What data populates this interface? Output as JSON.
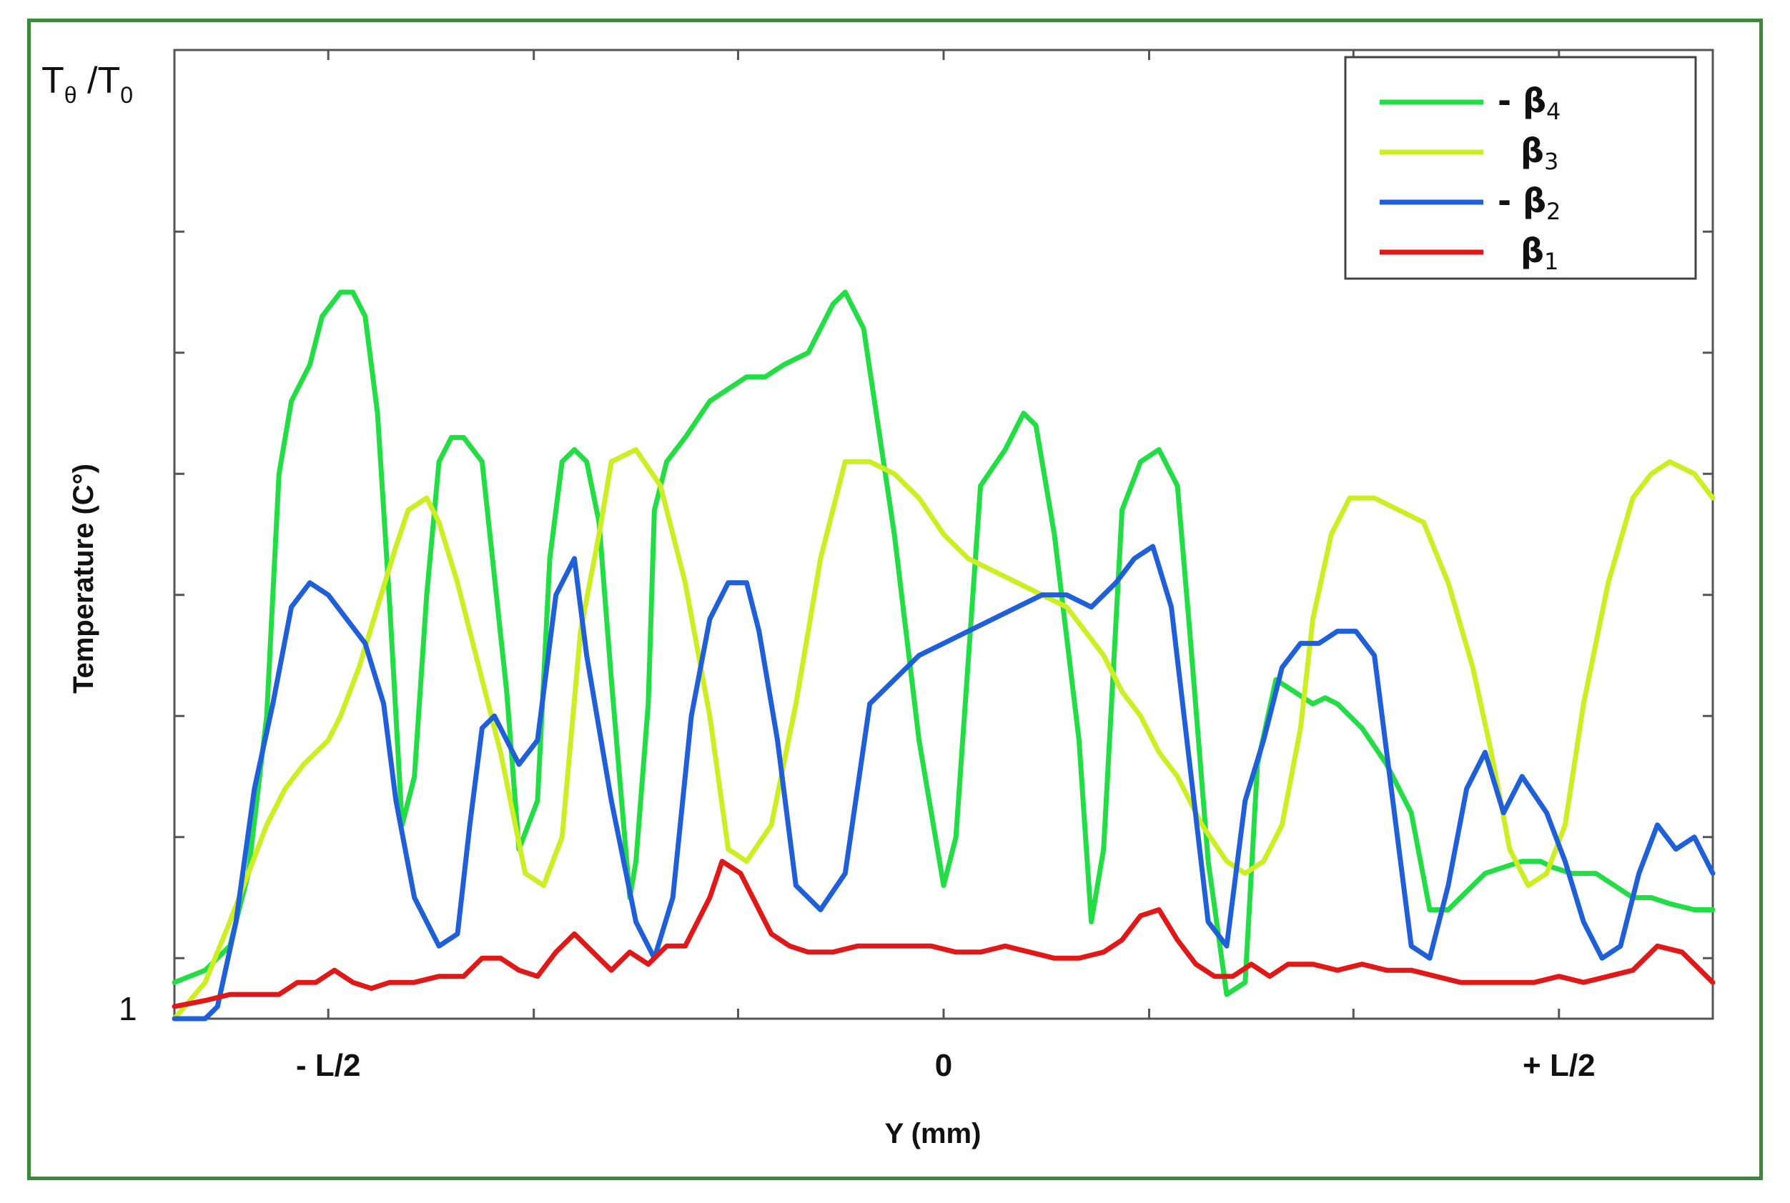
{
  "chart_data": {
    "type": "line",
    "title": "",
    "xlabel": "Y (mm)",
    "ylabel": "Temperature (C°)",
    "corner_label": {
      "main": "T",
      "sub": "θ",
      "sep": " /T",
      "sub2": "0"
    },
    "x_ticks": [
      {
        "value": -0.5,
        "label": "- L/2"
      },
      {
        "value": 0,
        "label": "0"
      },
      {
        "value": 0.5,
        "label": "+ L/2"
      }
    ],
    "x_minor_ticks": [
      -0.5,
      -0.333,
      -0.167,
      0,
      0.167,
      0.333,
      0.5
    ],
    "y_ticks": [
      {
        "value": 1,
        "label": "1"
      }
    ],
    "y_minor_ticks": [
      1.5,
      2.5,
      3.5,
      4.5,
      5.5,
      6.5,
      7.5
    ],
    "xlim": [
      -0.625,
      0.625
    ],
    "ylim": [
      1,
      9
    ],
    "grid": false,
    "legend_position": "top-right",
    "series": [
      {
        "name": "β4",
        "prefix": "- ",
        "base": "β",
        "sub": "4",
        "color": "#22dd44",
        "x": [
          -0.625,
          -0.6,
          -0.58,
          -0.565,
          -0.55,
          -0.54,
          -0.53,
          -0.515,
          -0.505,
          -0.49,
          -0.48,
          -0.47,
          -0.46,
          -0.45,
          -0.44,
          -0.43,
          -0.42,
          -0.41,
          -0.4,
          -0.39,
          -0.375,
          -0.355,
          -0.345,
          -0.33,
          -0.32,
          -0.31,
          -0.3,
          -0.29,
          -0.28,
          -0.27,
          -0.255,
          -0.25,
          -0.24,
          -0.235,
          -0.225,
          -0.21,
          -0.19,
          -0.175,
          -0.16,
          -0.145,
          -0.13,
          -0.11,
          -0.1,
          -0.09,
          -0.08,
          -0.065,
          -0.04,
          -0.02,
          0.0,
          0.01,
          0.03,
          0.05,
          0.065,
          0.075,
          0.09,
          0.11,
          0.12,
          0.13,
          0.145,
          0.16,
          0.175,
          0.19,
          0.2,
          0.215,
          0.23,
          0.245,
          0.255,
          0.27,
          0.285,
          0.3,
          0.31,
          0.32,
          0.34,
          0.36,
          0.38,
          0.395,
          0.41,
          0.42,
          0.43,
          0.44,
          0.455,
          0.47,
          0.485,
          0.495,
          0.51,
          0.53,
          0.545,
          0.56,
          0.575,
          0.59,
          0.61,
          0.625
        ],
        "y": [
          1.3,
          1.4,
          1.6,
          2.2,
          3.5,
          5.5,
          6.1,
          6.4,
          6.8,
          7.0,
          7.0,
          6.8,
          6.0,
          4.4,
          2.6,
          3.0,
          4.5,
          5.6,
          5.8,
          5.8,
          5.6,
          3.7,
          2.4,
          2.8,
          4.8,
          5.6,
          5.7,
          5.6,
          5.1,
          3.8,
          2.0,
          2.3,
          3.6,
          5.2,
          5.6,
          5.8,
          6.1,
          6.2,
          6.3,
          6.3,
          6.4,
          6.5,
          6.7,
          6.9,
          7.0,
          6.7,
          5.0,
          3.3,
          2.1,
          2.5,
          5.4,
          5.7,
          6.0,
          5.9,
          5.0,
          3.3,
          1.8,
          2.4,
          5.2,
          5.6,
          5.7,
          5.4,
          4.2,
          2.3,
          1.2,
          1.3,
          3.1,
          3.8,
          3.7,
          3.6,
          3.65,
          3.6,
          3.4,
          3.1,
          2.7,
          1.9,
          1.9,
          2.0,
          2.1,
          2.2,
          2.25,
          2.3,
          2.3,
          2.25,
          2.2,
          2.2,
          2.1,
          2.0,
          2.0,
          1.95,
          1.9,
          1.9
        ]
      },
      {
        "name": "β3",
        "prefix": "",
        "base": "β",
        "sub": "3",
        "color": "#ccee22",
        "x": [
          -0.625,
          -0.6,
          -0.58,
          -0.565,
          -0.55,
          -0.535,
          -0.52,
          -0.5,
          -0.49,
          -0.475,
          -0.46,
          -0.445,
          -0.435,
          -0.42,
          -0.41,
          -0.395,
          -0.38,
          -0.36,
          -0.34,
          -0.325,
          -0.31,
          -0.295,
          -0.28,
          -0.27,
          -0.25,
          -0.23,
          -0.21,
          -0.19,
          -0.175,
          -0.16,
          -0.14,
          -0.12,
          -0.1,
          -0.08,
          -0.06,
          -0.04,
          -0.02,
          0.0,
          0.02,
          0.04,
          0.06,
          0.08,
          0.1,
          0.115,
          0.13,
          0.145,
          0.16,
          0.175,
          0.19,
          0.21,
          0.23,
          0.245,
          0.26,
          0.275,
          0.29,
          0.3,
          0.315,
          0.33,
          0.35,
          0.37,
          0.39,
          0.41,
          0.43,
          0.445,
          0.46,
          0.475,
          0.49,
          0.505,
          0.52,
          0.54,
          0.56,
          0.575,
          0.59,
          0.61,
          0.625
        ],
        "y": [
          1.0,
          1.3,
          1.8,
          2.2,
          2.6,
          2.9,
          3.1,
          3.3,
          3.5,
          3.9,
          4.4,
          4.9,
          5.2,
          5.3,
          5.1,
          4.6,
          4.0,
          3.2,
          2.2,
          2.1,
          2.5,
          4.2,
          5.0,
          5.6,
          5.7,
          5.4,
          4.6,
          3.5,
          2.4,
          2.3,
          2.6,
          3.6,
          4.8,
          5.6,
          5.6,
          5.5,
          5.3,
          5.0,
          4.8,
          4.7,
          4.6,
          4.5,
          4.4,
          4.2,
          4.0,
          3.7,
          3.5,
          3.2,
          3.0,
          2.6,
          2.3,
          2.2,
          2.3,
          2.6,
          3.4,
          4.3,
          5.0,
          5.3,
          5.3,
          5.2,
          5.1,
          4.6,
          3.9,
          3.2,
          2.4,
          2.1,
          2.2,
          2.6,
          3.6,
          4.6,
          5.3,
          5.5,
          5.6,
          5.5,
          5.3
        ]
      },
      {
        "name": "β2",
        "prefix": "- ",
        "base": "β",
        "sub": "2",
        "color": "#1f5fd8",
        "x": [
          -0.625,
          -0.6,
          -0.59,
          -0.575,
          -0.56,
          -0.545,
          -0.53,
          -0.515,
          -0.5,
          -0.485,
          -0.47,
          -0.455,
          -0.445,
          -0.43,
          -0.41,
          -0.395,
          -0.385,
          -0.375,
          -0.365,
          -0.345,
          -0.33,
          -0.315,
          -0.3,
          -0.29,
          -0.27,
          -0.25,
          -0.235,
          -0.22,
          -0.205,
          -0.19,
          -0.175,
          -0.16,
          -0.15,
          -0.135,
          -0.12,
          -0.1,
          -0.08,
          -0.06,
          -0.04,
          -0.02,
          0.0,
          0.02,
          0.04,
          0.06,
          0.08,
          0.1,
          0.12,
          0.14,
          0.155,
          0.17,
          0.185,
          0.2,
          0.215,
          0.23,
          0.245,
          0.26,
          0.275,
          0.29,
          0.305,
          0.32,
          0.335,
          0.35,
          0.365,
          0.38,
          0.395,
          0.41,
          0.425,
          0.44,
          0.455,
          0.47,
          0.49,
          0.505,
          0.52,
          0.535,
          0.55,
          0.565,
          0.58,
          0.595,
          0.61,
          0.625
        ],
        "y": [
          1.0,
          1.0,
          1.1,
          1.8,
          2.9,
          3.6,
          4.4,
          4.6,
          4.5,
          4.3,
          4.1,
          3.6,
          2.8,
          2.0,
          1.6,
          1.7,
          2.6,
          3.4,
          3.5,
          3.1,
          3.3,
          4.5,
          4.8,
          4.0,
          2.8,
          1.8,
          1.5,
          2.0,
          3.5,
          4.3,
          4.6,
          4.6,
          4.2,
          3.3,
          2.1,
          1.9,
          2.2,
          3.6,
          3.8,
          4.0,
          4.1,
          4.2,
          4.3,
          4.4,
          4.5,
          4.5,
          4.4,
          4.6,
          4.8,
          4.9,
          4.4,
          3.1,
          1.8,
          1.6,
          2.8,
          3.3,
          3.9,
          4.1,
          4.1,
          4.2,
          4.2,
          4.0,
          2.8,
          1.6,
          1.5,
          2.1,
          2.9,
          3.2,
          2.7,
          3.0,
          2.7,
          2.3,
          1.8,
          1.5,
          1.6,
          2.2,
          2.6,
          2.4,
          2.5,
          2.2
        ]
      },
      {
        "name": "β1",
        "prefix": "",
        "base": "β",
        "sub": "1",
        "color": "#e01818",
        "x": [
          -0.625,
          -0.6,
          -0.58,
          -0.56,
          -0.54,
          -0.525,
          -0.51,
          -0.495,
          -0.48,
          -0.465,
          -0.45,
          -0.43,
          -0.41,
          -0.39,
          -0.375,
          -0.36,
          -0.345,
          -0.33,
          -0.315,
          -0.3,
          -0.285,
          -0.27,
          -0.255,
          -0.24,
          -0.225,
          -0.21,
          -0.2,
          -0.19,
          -0.18,
          -0.165,
          -0.15,
          -0.14,
          -0.125,
          -0.11,
          -0.09,
          -0.07,
          -0.05,
          -0.03,
          -0.01,
          0.01,
          0.03,
          0.05,
          0.07,
          0.09,
          0.11,
          0.13,
          0.145,
          0.16,
          0.175,
          0.19,
          0.205,
          0.22,
          0.235,
          0.25,
          0.265,
          0.28,
          0.3,
          0.32,
          0.34,
          0.36,
          0.38,
          0.4,
          0.42,
          0.44,
          0.46,
          0.48,
          0.5,
          0.52,
          0.54,
          0.56,
          0.58,
          0.6,
          0.625
        ],
        "y": [
          1.1,
          1.15,
          1.2,
          1.2,
          1.2,
          1.3,
          1.3,
          1.4,
          1.3,
          1.25,
          1.3,
          1.3,
          1.35,
          1.35,
          1.5,
          1.5,
          1.4,
          1.35,
          1.55,
          1.7,
          1.55,
          1.4,
          1.55,
          1.45,
          1.6,
          1.6,
          1.8,
          2.0,
          2.3,
          2.2,
          1.9,
          1.7,
          1.6,
          1.55,
          1.55,
          1.6,
          1.6,
          1.6,
          1.6,
          1.55,
          1.55,
          1.6,
          1.55,
          1.5,
          1.5,
          1.55,
          1.65,
          1.85,
          1.9,
          1.65,
          1.45,
          1.35,
          1.35,
          1.45,
          1.35,
          1.45,
          1.45,
          1.4,
          1.45,
          1.4,
          1.4,
          1.35,
          1.3,
          1.3,
          1.3,
          1.3,
          1.35,
          1.3,
          1.35,
          1.4,
          1.6,
          1.55,
          1.3
        ]
      }
    ]
  }
}
